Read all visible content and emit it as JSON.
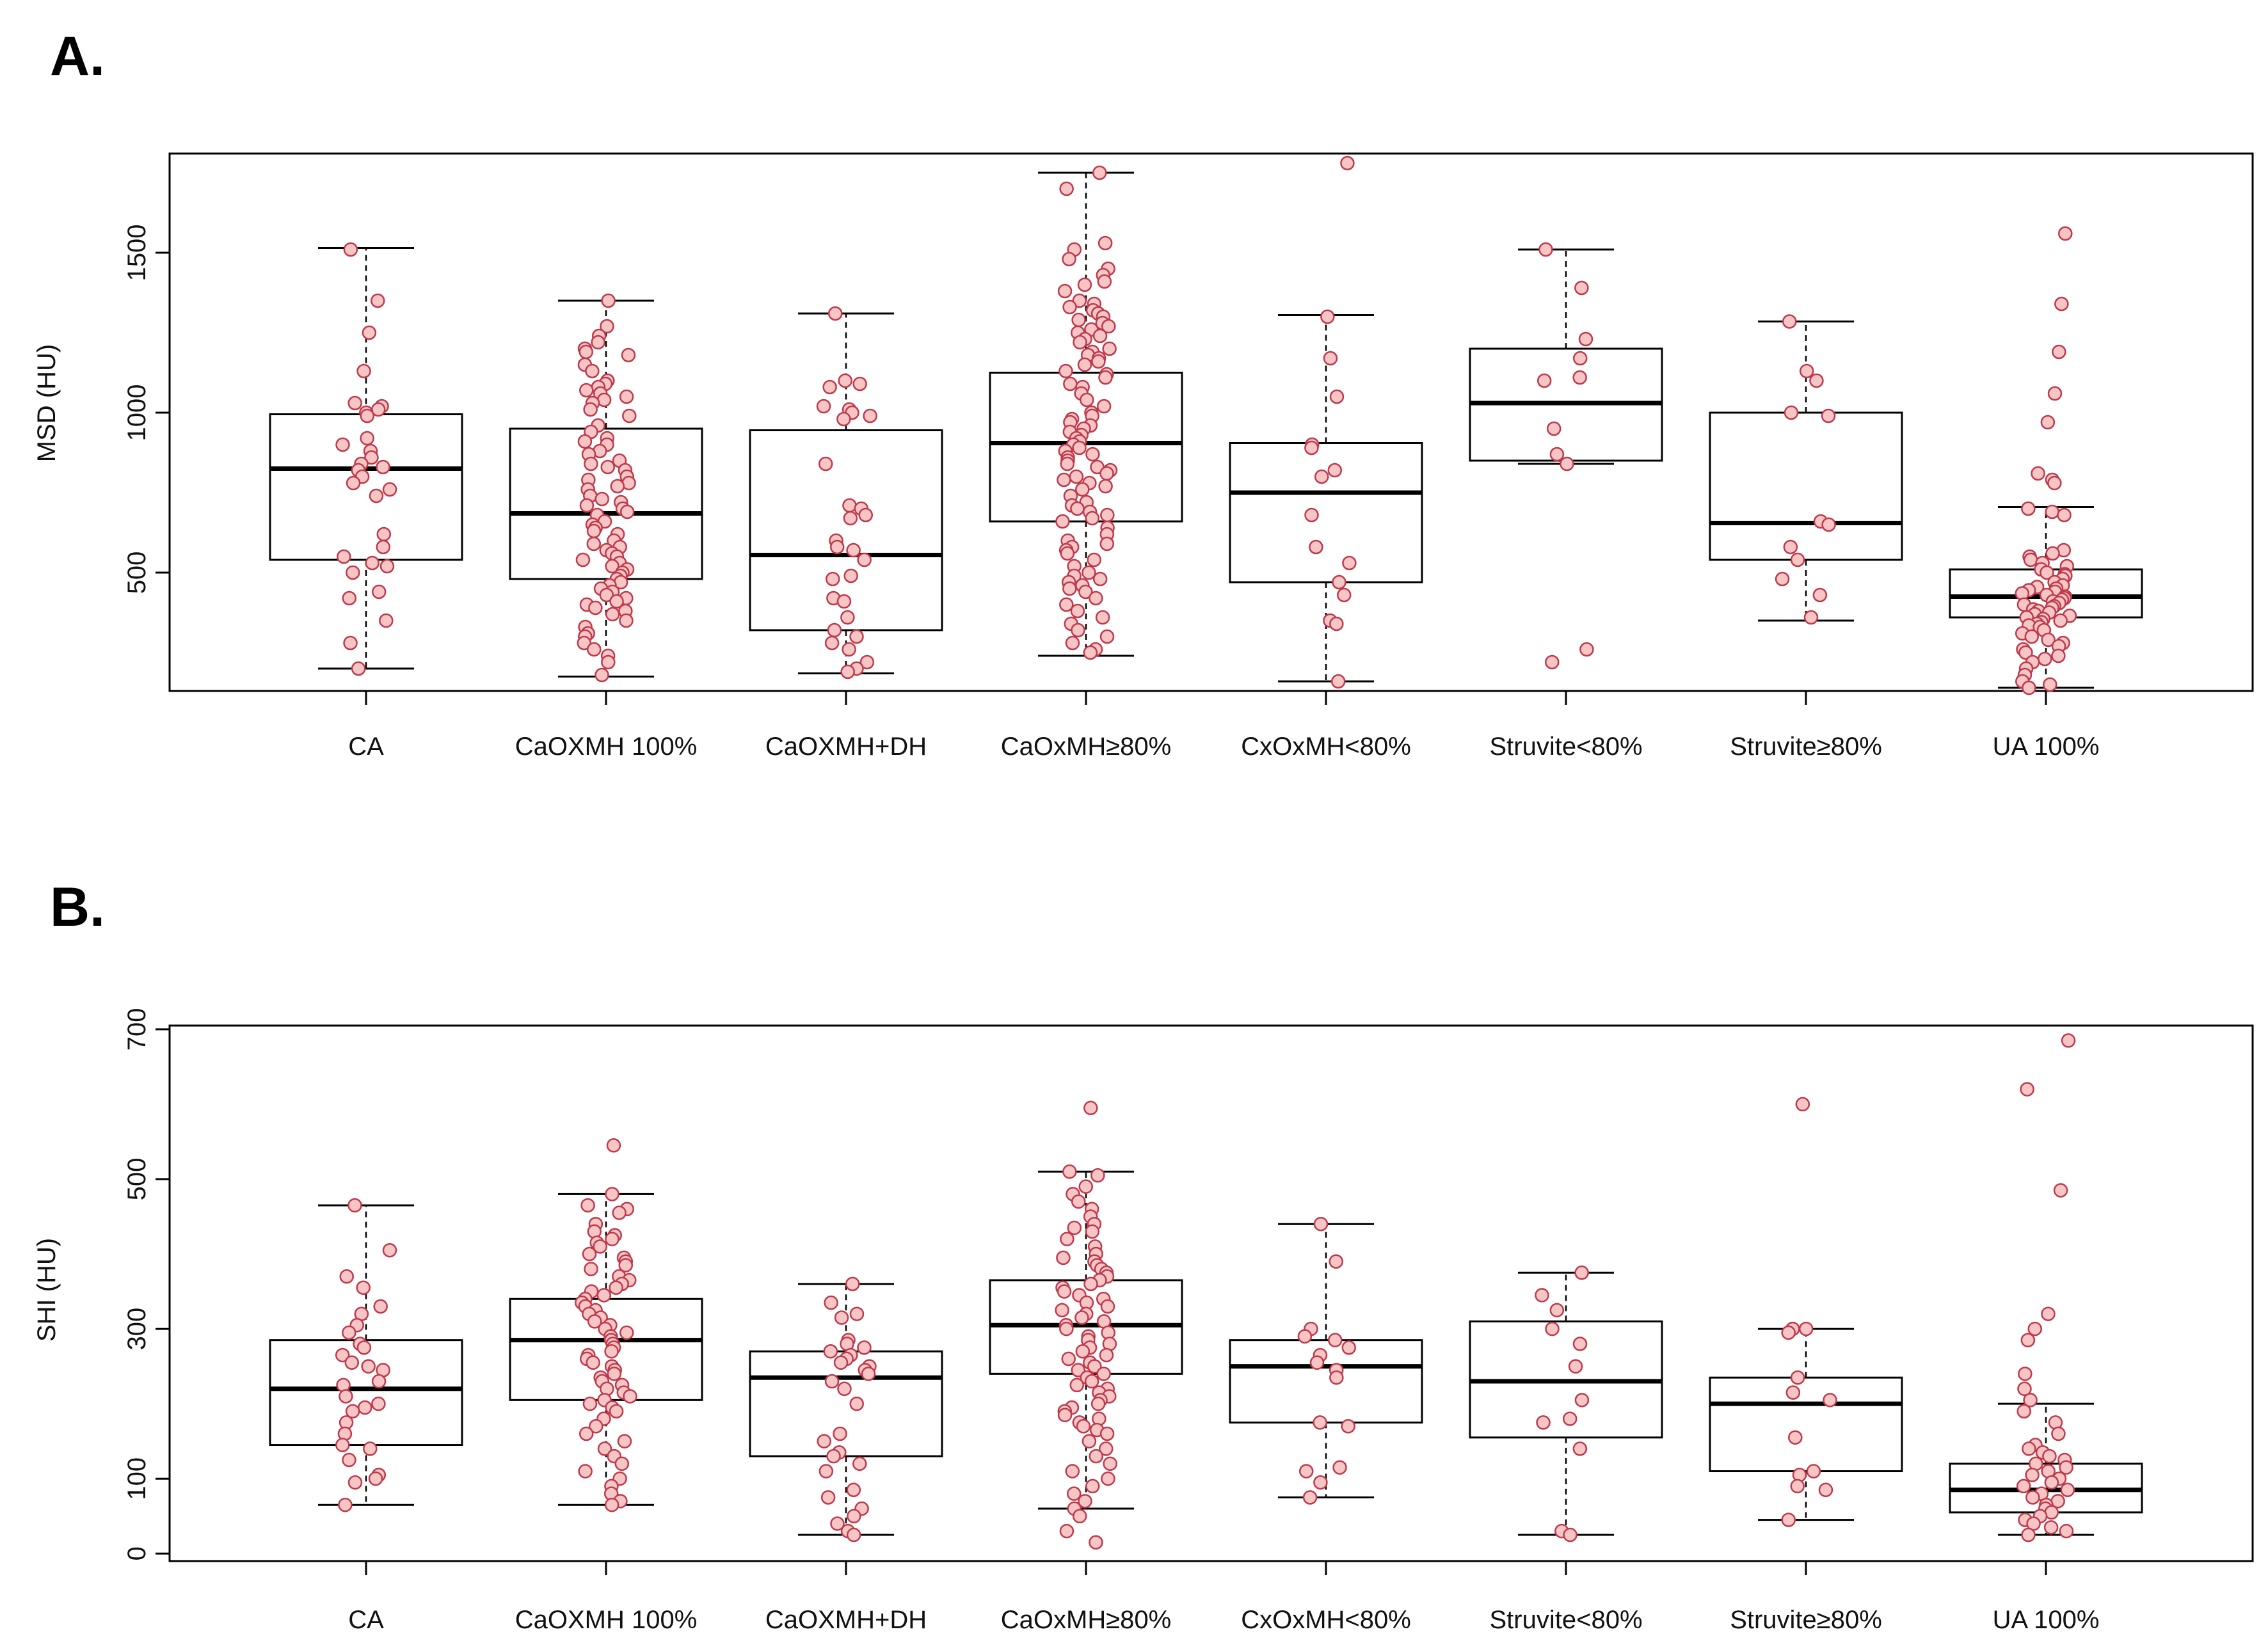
{
  "chart_data": [
    {
      "panel": "A.",
      "type": "box",
      "ylabel": "MSD (HU)",
      "ylim": [
        130,
        1810
      ],
      "yticks": [
        500,
        1000,
        1500
      ],
      "categories": [
        "CA",
        "CaOXMH 100%",
        "CaOXMH+DH",
        "CaOxMH≥80%",
        "CxOxMH<80%",
        "Struvite<80%",
        "Struvite≥80%",
        "UA 100%"
      ],
      "box_colors": {
        "box": "#000000",
        "point_fill": "#f6c6c6",
        "point_stroke": "#c0394b"
      },
      "boxes": [
        {
          "whisker_low": 200,
          "q1": 540,
          "median": 825,
          "q3": 995,
          "whisker_high": 1515
        },
        {
          "whisker_low": 175,
          "q1": 480,
          "median": 685,
          "q3": 950,
          "whisker_high": 1350
        },
        {
          "whisker_low": 185,
          "q1": 320,
          "median": 555,
          "q3": 945,
          "whisker_high": 1310
        },
        {
          "whisker_low": 240,
          "q1": 660,
          "median": 905,
          "q3": 1125,
          "whisker_high": 1750
        },
        {
          "whisker_low": 160,
          "q1": 470,
          "median": 750,
          "q3": 905,
          "whisker_high": 1305
        },
        {
          "whisker_low": 840,
          "q1": 850,
          "median": 1030,
          "q3": 1200,
          "whisker_high": 1510
        },
        {
          "whisker_low": 350,
          "q1": 540,
          "median": 655,
          "q3": 1000,
          "whisker_high": 1285
        },
        {
          "whisker_low": 140,
          "q1": 360,
          "median": 425,
          "q3": 510,
          "whisker_high": 705
        }
      ],
      "points": [
        [
          1510,
          1350,
          1250,
          1130,
          1030,
          1020,
          1010,
          1000,
          990,
          920,
          900,
          880,
          860,
          840,
          830,
          820,
          800,
          780,
          760,
          740,
          620,
          580,
          550,
          530,
          520,
          500,
          440,
          420,
          350,
          280,
          200
        ],
        [
          1350,
          1270,
          1240,
          1220,
          1200,
          1190,
          1180,
          1150,
          1130,
          1100,
          1090,
          1080,
          1070,
          1060,
          1050,
          1040,
          1030,
          1010,
          990,
          960,
          940,
          920,
          910,
          900,
          880,
          870,
          850,
          840,
          830,
          820,
          800,
          790,
          780,
          770,
          760,
          740,
          730,
          720,
          710,
          700,
          690,
          680,
          660,
          650,
          640,
          630,
          620,
          600,
          590,
          580,
          570,
          560,
          550,
          540,
          530,
          520,
          510,
          500,
          490,
          480,
          470,
          460,
          450,
          440,
          430,
          420,
          410,
          400,
          390,
          380,
          370,
          350,
          330,
          310,
          300,
          280,
          260,
          240,
          220,
          180
        ],
        [
          1310,
          1100,
          1090,
          1080,
          1020,
          1010,
          1000,
          990,
          980,
          840,
          710,
          700,
          680,
          670,
          600,
          580,
          570,
          540,
          490,
          480,
          420,
          410,
          360,
          320,
          300,
          280,
          260,
          220,
          200,
          190
        ],
        [
          1750,
          1700,
          1530,
          1510,
          1480,
          1450,
          1430,
          1410,
          1400,
          1380,
          1350,
          1340,
          1330,
          1320,
          1310,
          1300,
          1290,
          1280,
          1270,
          1260,
          1250,
          1240,
          1230,
          1220,
          1200,
          1190,
          1180,
          1170,
          1160,
          1150,
          1130,
          1120,
          1110,
          1090,
          1080,
          1060,
          1040,
          1020,
          1000,
          990,
          980,
          970,
          960,
          950,
          940,
          930,
          920,
          910,
          900,
          890,
          880,
          870,
          860,
          850,
          840,
          830,
          820,
          810,
          800,
          790,
          780,
          770,
          760,
          740,
          720,
          710,
          700,
          690,
          680,
          670,
          660,
          640,
          620,
          600,
          590,
          580,
          570,
          560,
          540,
          520,
          500,
          490,
          480,
          470,
          460,
          450,
          440,
          420,
          400,
          380,
          360,
          340,
          320,
          300,
          280,
          260,
          250
        ],
        [
          1780,
          1300,
          1170,
          1050,
          900,
          890,
          820,
          800,
          680,
          580,
          530,
          470,
          430,
          350,
          340,
          160
        ],
        [
          1510,
          1390,
          1230,
          1170,
          1110,
          1100,
          950,
          870,
          840,
          260,
          220
        ],
        [
          1285,
          1130,
          1100,
          1000,
          990,
          660,
          650,
          580,
          540,
          480,
          430,
          360
        ],
        [
          1560,
          1340,
          1190,
          1060,
          970,
          810,
          790,
          780,
          700,
          690,
          680,
          570,
          560,
          550,
          540,
          530,
          520,
          510,
          500,
          495,
          490,
          480,
          470,
          460,
          455,
          450,
          445,
          440,
          435,
          430,
          425,
          420,
          415,
          410,
          405,
          400,
          395,
          390,
          385,
          380,
          375,
          370,
          365,
          360,
          355,
          350,
          345,
          340,
          335,
          330,
          320,
          310,
          300,
          290,
          280,
          270,
          260,
          250,
          240,
          230,
          220,
          200,
          180,
          160,
          150,
          140
        ]
      ]
    },
    {
      "panel": "B.",
      "type": "box",
      "ylabel": "SHI (HU)",
      "ylim": [
        -10,
        705
      ],
      "yticks": [
        0,
        100,
        300,
        500,
        700
      ],
      "categories": [
        "CA",
        "CaOXMH 100%",
        "CaOXMH+DH",
        "CaOxMH≥80%",
        "CxOxMH<80%",
        "Struvite<80%",
        "Struvite≥80%",
        "UA 100%"
      ],
      "box_colors": {
        "box": "#000000",
        "point_fill": "#f6c6c6",
        "point_stroke": "#c0394b"
      },
      "boxes": [
        {
          "whisker_low": 65,
          "q1": 145,
          "median": 220,
          "q3": 285,
          "whisker_high": 465
        },
        {
          "whisker_low": 65,
          "q1": 205,
          "median": 285,
          "q3": 340,
          "whisker_high": 480
        },
        {
          "whisker_low": 25,
          "q1": 130,
          "median": 235,
          "q3": 270,
          "whisker_high": 360
        },
        {
          "whisker_low": 60,
          "q1": 240,
          "median": 305,
          "q3": 365,
          "whisker_high": 510
        },
        {
          "whisker_low": 75,
          "q1": 175,
          "median": 250,
          "q3": 285,
          "whisker_high": 440
        },
        {
          "whisker_low": 25,
          "q1": 155,
          "median": 230,
          "q3": 310,
          "whisker_high": 375
        },
        {
          "whisker_low": 45,
          "q1": 110,
          "median": 200,
          "q3": 235,
          "whisker_high": 300
        },
        {
          "whisker_low": 25,
          "q1": 55,
          "median": 85,
          "q3": 120,
          "whisker_high": 200
        }
      ],
      "points": [
        [
          465,
          405,
          370,
          355,
          330,
          320,
          305,
          295,
          280,
          275,
          265,
          255,
          250,
          245,
          230,
          225,
          210,
          200,
          195,
          190,
          175,
          160,
          145,
          140,
          125,
          105,
          100,
          95,
          65
        ],
        [
          545,
          480,
          465,
          460,
          455,
          440,
          430,
          425,
          420,
          415,
          410,
          400,
          395,
          390,
          385,
          380,
          370,
          365,
          360,
          355,
          350,
          345,
          340,
          335,
          330,
          325,
          320,
          315,
          310,
          305,
          300,
          295,
          290,
          285,
          280,
          275,
          270,
          265,
          260,
          255,
          250,
          245,
          240,
          235,
          230,
          225,
          220,
          215,
          210,
          205,
          200,
          195,
          190,
          180,
          170,
          160,
          150,
          140,
          130,
          120,
          110,
          100,
          90,
          80,
          70,
          65
        ],
        [
          360,
          335,
          320,
          315,
          285,
          280,
          275,
          270,
          265,
          260,
          255,
          250,
          245,
          240,
          230,
          220,
          200,
          160,
          150,
          135,
          130,
          120,
          110,
          85,
          75,
          60,
          50,
          40,
          30,
          25
        ],
        [
          595,
          510,
          505,
          490,
          480,
          470,
          460,
          450,
          440,
          435,
          430,
          420,
          410,
          400,
          395,
          390,
          385,
          380,
          375,
          370,
          365,
          360,
          355,
          350,
          345,
          340,
          335,
          330,
          325,
          320,
          315,
          310,
          305,
          300,
          295,
          290,
          285,
          280,
          275,
          270,
          265,
          260,
          255,
          250,
          245,
          240,
          235,
          230,
          225,
          220,
          215,
          210,
          205,
          200,
          195,
          190,
          185,
          180,
          175,
          170,
          165,
          160,
          150,
          140,
          130,
          120,
          110,
          100,
          90,
          80,
          70,
          60,
          50,
          30,
          15
        ],
        [
          440,
          390,
          300,
          290,
          285,
          275,
          265,
          255,
          245,
          235,
          175,
          170,
          115,
          110,
          95,
          75
        ],
        [
          375,
          345,
          325,
          300,
          280,
          250,
          205,
          180,
          175,
          140,
          30,
          25
        ],
        [
          600,
          300,
          300,
          295,
          235,
          215,
          205,
          155,
          110,
          105,
          90,
          85,
          45
        ],
        [
          685,
          620,
          485,
          320,
          300,
          285,
          240,
          220,
          205,
          190,
          175,
          160,
          145,
          140,
          135,
          130,
          125,
          120,
          115,
          110,
          105,
          100,
          95,
          90,
          85,
          80,
          75,
          70,
          65,
          60,
          55,
          50,
          45,
          40,
          35,
          30,
          25
        ]
      ]
    }
  ]
}
